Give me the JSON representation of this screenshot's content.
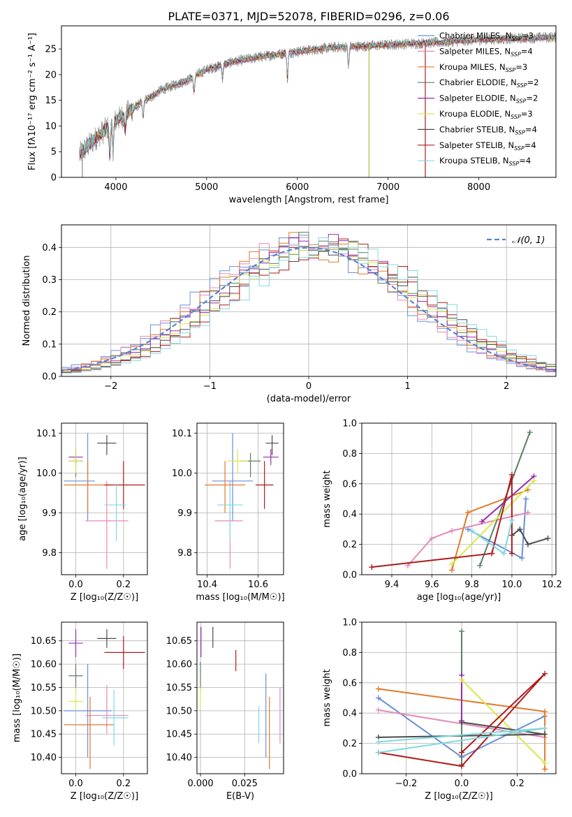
{
  "colors": {
    "Chabrier MILES": "#6a8fd8",
    "Salpeter MILES": "#e68ab8",
    "Kroupa MILES": "#e07a2a",
    "Chabrier ELODIE": "#5a7f66",
    "Salpeter ELODIE": "#9a2ab0",
    "Kroupa ELODIE": "#d8e84e",
    "Chabrier STELIB": "#4a4a4a",
    "Salpeter STELIB": "#b01a1a",
    "Kroupa STELIB": "#80d8e0"
  },
  "chart_data": [
    {
      "id": "spectrum",
      "type": "line",
      "title": "PLATE=0371, MJD=52078, FIBERID=0296, z=0.06",
      "xlabel": "wavelength [Angstrom, rest frame]",
      "ylabel": "Flux [fλ10⁻¹⁷ erg cm⁻² s⁻¹ A⁻¹]",
      "xlim": [
        3400,
        8850
      ],
      "ylim": [
        0,
        29.5
      ],
      "xticks": [
        "4000",
        "5000",
        "6000",
        "7000",
        "8000"
      ],
      "yticks": [
        "0",
        "5",
        "10",
        "15",
        "20",
        "25"
      ],
      "legend_loc": "upper right",
      "legend": [
        {
          "model": "Chabrier MILES",
          "label": "Chabrier MILES, N",
          "sub": "SSP",
          "n": "=3"
        },
        {
          "model": "Salpeter MILES",
          "label": "Salpeter MILES, N",
          "sub": "SSP",
          "n": "=4"
        },
        {
          "model": "Kroupa MILES",
          "label": "Kroupa MILES, N",
          "sub": "SSP",
          "n": "=3"
        },
        {
          "model": "Chabrier ELODIE",
          "label": "Chabrier ELODIE, N",
          "sub": "SSP",
          "n": "=2"
        },
        {
          "model": "Salpeter ELODIE",
          "label": "Salpeter ELODIE, N",
          "sub": "SSP",
          "n": "=2"
        },
        {
          "model": "Kroupa ELODIE",
          "label": "Kroupa ELODIE, N",
          "sub": "SSP",
          "n": "=3"
        },
        {
          "model": "Chabrier STELIB",
          "label": "Chabrier STELIB, N",
          "sub": "SSP",
          "n": "=4"
        },
        {
          "model": "Salpeter STELIB",
          "label": "Salpeter STELIB, N",
          "sub": "SSP",
          "n": "=4"
        },
        {
          "model": "Kroupa STELIB",
          "label": "Kroupa STELIB, N",
          "sub": "SSP",
          "n": "=4"
        }
      ],
      "continuum": [
        [
          3600,
          4.5
        ],
        [
          3800,
          8
        ],
        [
          4000,
          11
        ],
        [
          4200,
          13.5
        ],
        [
          4500,
          17
        ],
        [
          4800,
          19
        ],
        [
          5000,
          21
        ],
        [
          5300,
          22.5
        ],
        [
          5600,
          23.5
        ],
        [
          6000,
          24.5
        ],
        [
          6400,
          25.3
        ],
        [
          6800,
          25.6
        ],
        [
          7200,
          26
        ],
        [
          7600,
          26.3
        ],
        [
          8000,
          26.8
        ],
        [
          8400,
          27
        ],
        [
          8800,
          27.3
        ]
      ],
      "data_range": [
        3600,
        8850
      ],
      "data_color": "#8a8a8a",
      "dips": [
        [
          3933,
          6
        ],
        [
          3968,
          5
        ],
        [
          4102,
          3
        ],
        [
          4300,
          3
        ],
        [
          4861,
          3
        ],
        [
          5175,
          2.5
        ],
        [
          5890,
          5
        ],
        [
          6563,
          4
        ]
      ],
      "spikes": [
        [
          6790,
          0
        ],
        [
          7410,
          0
        ],
        [
          3630,
          0
        ]
      ]
    },
    {
      "id": "residuals",
      "type": "histogram",
      "xlabel": "(data-model)/error",
      "ylabel": "Normed distribution",
      "xlim": [
        -2.5,
        2.5
      ],
      "ylim": [
        0,
        0.47
      ],
      "xticks": [
        "−2",
        "−1",
        "0",
        "1",
        "2"
      ],
      "yticks": [
        "0.0",
        "0.1",
        "0.2",
        "0.3",
        "0.4"
      ],
      "bin_width": 0.1,
      "gaussian_label": "𝒩(0, 1)",
      "gaussian_color": "#5a82d6"
    },
    {
      "id": "age_vs_Z",
      "type": "errorbar",
      "xlabel": "Z [log₁₀(Z/Z☉)]",
      "ylabel": "age  [log₁₀(age/yr)]",
      "xlim": [
        -0.06,
        0.3
      ],
      "ylim": [
        9.745,
        10.125
      ],
      "xticks": [
        "0.0",
        "0.2"
      ],
      "yticks": [
        "9.8",
        "9.9",
        "10.0",
        "10.1"
      ],
      "points": [
        {
          "model": "Chabrier MILES",
          "x": 0.05,
          "xerr": [
            0.1,
            0.03
          ],
          "y": 9.98,
          "yerr": [
            0.1,
            0.12
          ]
        },
        {
          "model": "Salpeter MILES",
          "x": 0.13,
          "xerr": [
            0.09,
            0.09
          ],
          "y": 9.88,
          "yerr": [
            0.12,
            0.1
          ]
        },
        {
          "model": "Kroupa MILES",
          "x": 0.05,
          "xerr": [
            0.1,
            0.1
          ],
          "y": 9.97,
          "yerr": [
            0.07,
            0.06
          ]
        },
        {
          "model": "Chabrier ELODIE",
          "x": 0.0,
          "xerr": [
            0.03,
            0.03
          ],
          "y": 10.03,
          "yerr": [
            0.04,
            0.02
          ]
        },
        {
          "model": "Salpeter ELODIE",
          "x": 0.0,
          "xerr": [
            0.03,
            0.03
          ],
          "y": 10.04,
          "yerr": [
            0.02,
            0.02
          ]
        },
        {
          "model": "Kroupa ELODIE",
          "x": 0.0,
          "xerr": [
            0.03,
            0.03
          ],
          "y": 10.03,
          "yerr": [
            0.03,
            0.03
          ]
        },
        {
          "model": "Chabrier STELIB",
          "x": 0.13,
          "xerr": [
            0.04,
            0.04
          ],
          "y": 10.075,
          "yerr": [
            0.03,
            0.02
          ]
        },
        {
          "model": "Salpeter STELIB",
          "x": 0.2,
          "xerr": [
            0.08,
            0.09
          ],
          "y": 9.97,
          "yerr": [
            0.06,
            0.06
          ]
        },
        {
          "model": "Kroupa STELIB",
          "x": 0.17,
          "xerr": [
            0.05,
            0.04
          ],
          "y": 9.92,
          "yerr": [
            0.09,
            0.05
          ]
        }
      ]
    },
    {
      "id": "age_vs_mass",
      "type": "errorbar",
      "xlabel": "mass [log₁₀(M/M☉)]",
      "ylabel": "",
      "xlim": [
        10.36,
        10.7
      ],
      "ylim": [
        9.745,
        10.125
      ],
      "xticks": [
        "10.4",
        "10.6"
      ],
      "yticks": [
        "9.8",
        "9.9",
        "10.0",
        "10.1"
      ],
      "points": [
        {
          "model": "Chabrier MILES",
          "x": 10.5,
          "xerr": [
            0.08,
            0.08
          ],
          "y": 9.98,
          "yerr": [
            0.1,
            0.12
          ]
        },
        {
          "model": "Salpeter MILES",
          "x": 10.49,
          "xerr": [
            0.06,
            0.05
          ],
          "y": 9.88,
          "yerr": [
            0.12,
            0.1
          ]
        },
        {
          "model": "Kroupa MILES",
          "x": 10.47,
          "xerr": [
            0.08,
            0.08
          ],
          "y": 9.97,
          "yerr": [
            0.07,
            0.06
          ]
        },
        {
          "model": "Chabrier ELODIE",
          "x": 10.57,
          "xerr": [
            0.04,
            0.04
          ],
          "y": 10.03,
          "yerr": [
            0.04,
            0.02
          ]
        },
        {
          "model": "Salpeter ELODIE",
          "x": 10.65,
          "xerr": [
            0.03,
            0.03
          ],
          "y": 10.04,
          "yerr": [
            0.02,
            0.02
          ]
        },
        {
          "model": "Kroupa ELODIE",
          "x": 10.52,
          "xerr": [
            0.04,
            0.04
          ],
          "y": 10.03,
          "yerr": [
            0.03,
            0.03
          ]
        },
        {
          "model": "Chabrier STELIB",
          "x": 10.655,
          "xerr": [
            0.025,
            0.025
          ],
          "y": 10.075,
          "yerr": [
            0.03,
            0.02
          ]
        },
        {
          "model": "Salpeter STELIB",
          "x": 10.625,
          "xerr": [
            0.035,
            0.035
          ],
          "y": 9.97,
          "yerr": [
            0.06,
            0.06
          ]
        },
        {
          "model": "Kroupa STELIB",
          "x": 10.49,
          "xerr": [
            0.05,
            0.05
          ],
          "y": 9.92,
          "yerr": [
            0.09,
            0.05
          ]
        }
      ]
    },
    {
      "id": "weight_vs_age",
      "type": "line",
      "xlabel": "age  [log₁₀(age/yr)]",
      "ylabel": "mass weight",
      "xlim": [
        9.25,
        10.22
      ],
      "ylim": [
        0.0,
        1.0
      ],
      "xticks": [
        "9.4",
        "9.6",
        "9.8",
        "10.0",
        "10.2"
      ],
      "yticks": [
        "0.0",
        "0.2",
        "0.4",
        "0.6",
        "0.8",
        "1.0"
      ],
      "series": [
        {
          "model": "Chabrier MILES",
          "x": [
            9.78,
            10.05,
            10.07
          ],
          "y": [
            0.3,
            0.11,
            0.5
          ]
        },
        {
          "model": "Salpeter MILES",
          "x": [
            9.48,
            9.6,
            9.7,
            10.08
          ],
          "y": [
            0.06,
            0.24,
            0.29,
            0.41
          ]
        },
        {
          "model": "Kroupa MILES",
          "x": [
            9.7,
            9.78,
            10.08
          ],
          "y": [
            0.03,
            0.41,
            0.56
          ]
        },
        {
          "model": "Chabrier ELODIE",
          "x": [
            9.84,
            10.09
          ],
          "y": [
            0.06,
            0.94
          ]
        },
        {
          "model": "Salpeter ELODIE",
          "x": [
            9.85,
            10.11
          ],
          "y": [
            0.35,
            0.65
          ]
        },
        {
          "model": "Kroupa ELODIE",
          "x": [
            9.7,
            10.11
          ],
          "y": [
            0.07,
            0.62
          ]
        },
        {
          "model": "Chabrier STELIB",
          "x": [
            10.0,
            10.04,
            10.08,
            10.18
          ],
          "y": [
            0.26,
            0.3,
            0.2,
            0.24
          ]
        },
        {
          "model": "Salpeter STELIB",
          "x": [
            9.3,
            9.9,
            10.0,
            10.0
          ],
          "y": [
            0.05,
            0.14,
            0.66,
            0.14
          ]
        },
        {
          "model": "Kroupa STELIB",
          "x": [
            9.8,
            9.96,
            10.0
          ],
          "y": [
            0.29,
            0.14,
            0.36
          ]
        }
      ]
    },
    {
      "id": "mass_vs_Z",
      "type": "errorbar",
      "xlabel": "Z [log₁₀(Z/Z☉)]",
      "ylabel": "mass [log₁₀(M/M☉)]",
      "xlim": [
        -0.06,
        0.3
      ],
      "ylim": [
        10.365,
        10.69
      ],
      "xticks": [
        "0.0",
        "0.2"
      ],
      "yticks": [
        "10.40",
        "10.45",
        "10.50",
        "10.55",
        "10.60",
        "10.65"
      ],
      "points": [
        {
          "model": "Chabrier MILES",
          "x": 0.05,
          "xerr": [
            0.1,
            0.1
          ],
          "y": 10.5,
          "yerr": [
            0.1,
            0.1
          ]
        },
        {
          "model": "Salpeter MILES",
          "x": 0.13,
          "xerr": [
            0.09,
            0.09
          ],
          "y": 10.49,
          "yerr": [
            0.04,
            0.065
          ]
        },
        {
          "model": "Kroupa MILES",
          "x": 0.06,
          "xerr": [
            0.11,
            0.1
          ],
          "y": 10.47,
          "yerr": [
            0.095,
            0.06
          ]
        },
        {
          "model": "Chabrier ELODIE",
          "x": 0.0,
          "xerr": [
            0.03,
            0.03
          ],
          "y": 10.575,
          "yerr": [
            0.03,
            0.025
          ]
        },
        {
          "model": "Salpeter ELODIE",
          "x": 0.0,
          "xerr": [
            0.03,
            0.03
          ],
          "y": 10.645,
          "yerr": [
            0.03,
            0.03
          ]
        },
        {
          "model": "Kroupa ELODIE",
          "x": 0.0,
          "xerr": [
            0.03,
            0.03
          ],
          "y": 10.52,
          "yerr": [
            0.02,
            0.03
          ]
        },
        {
          "model": "Chabrier STELIB",
          "x": 0.13,
          "xerr": [
            0.04,
            0.04
          ],
          "y": 10.655,
          "yerr": [
            0.02,
            0.02
          ]
        },
        {
          "model": "Salpeter STELIB",
          "x": 0.2,
          "xerr": [
            0.08,
            0.09
          ],
          "y": 10.625,
          "yerr": [
            0.035,
            0.035
          ]
        },
        {
          "model": "Kroupa STELIB",
          "x": 0.16,
          "xerr": [
            0.05,
            0.06
          ],
          "y": 10.485,
          "yerr": [
            0.06,
            0.06
          ]
        }
      ]
    },
    {
      "id": "mass_vs_ebv",
      "type": "errorbar",
      "xlabel": "E(B-V)",
      "ylabel": "",
      "xlim": [
        -0.002,
        0.047
      ],
      "ylim": [
        10.365,
        10.69
      ],
      "xticks": [
        "0.000",
        "0.025"
      ],
      "yticks": [
        "10.40",
        "10.45",
        "10.50",
        "10.55",
        "10.60",
        "10.65"
      ],
      "points": [
        {
          "model": "Chabrier MILES",
          "x": 0.037,
          "xerr": [
            0,
            0
          ],
          "y": 10.5,
          "yerr": [
            0.1,
            0.08
          ]
        },
        {
          "model": "Salpeter MILES",
          "x": 0.045,
          "xerr": [
            0,
            0
          ],
          "y": 10.49,
          "yerr": [
            0.06,
            0.06
          ]
        },
        {
          "model": "Kroupa MILES",
          "x": 0.039,
          "xerr": [
            0,
            0
          ],
          "y": 10.47,
          "yerr": [
            0.095,
            0.06
          ]
        },
        {
          "model": "Chabrier ELODIE",
          "x": 0.0,
          "xerr": [
            0,
            0
          ],
          "y": 10.575,
          "yerr": [
            0.03,
            0.03
          ]
        },
        {
          "model": "Salpeter ELODIE",
          "x": 0.0003,
          "xerr": [
            0,
            0
          ],
          "y": 10.645,
          "yerr": [
            0.03,
            0.035
          ]
        },
        {
          "model": "Kroupa ELODIE",
          "x": 0.0,
          "xerr": [
            0,
            0
          ],
          "y": 10.52,
          "yerr": [
            0.02,
            0.03
          ]
        },
        {
          "model": "Chabrier STELIB",
          "x": 0.007,
          "xerr": [
            0,
            0
          ],
          "y": 10.655,
          "yerr": [
            0.02,
            0.025
          ]
        },
        {
          "model": "Salpeter STELIB",
          "x": 0.02,
          "xerr": [
            0,
            0
          ],
          "y": 10.61,
          "yerr": [
            0.025,
            0.02
          ]
        },
        {
          "model": "Kroupa STELIB",
          "x": 0.033,
          "xerr": [
            0,
            0
          ],
          "y": 10.47,
          "yerr": [
            0.04,
            0.04
          ]
        }
      ]
    },
    {
      "id": "weight_vs_Z",
      "type": "line",
      "xlabel": "Z [log₁₀(Z/Z☉)]",
      "ylabel": "mass weight",
      "xlim": [
        -0.36,
        0.34
      ],
      "ylim": [
        0.0,
        1.0
      ],
      "xticks": [
        "−0.2",
        "0.0",
        "0.2"
      ],
      "yticks": [
        "0.0",
        "0.2",
        "0.4",
        "0.6",
        "0.8",
        "1.0"
      ],
      "series": [
        {
          "model": "Chabrier MILES",
          "x": [
            -0.3,
            0.0,
            0.3
          ],
          "y": [
            0.5,
            0.11,
            0.38
          ]
        },
        {
          "model": "Salpeter MILES",
          "x": [
            -0.3,
            0.3
          ],
          "y": [
            0.42,
            0.24
          ]
        },
        {
          "model": "Kroupa MILES",
          "x": [
            -0.3,
            0.3,
            0.3
          ],
          "y": [
            0.56,
            0.41,
            0.03
          ]
        },
        {
          "model": "Chabrier ELODIE",
          "x": [
            0.0,
            0.0
          ],
          "y": [
            0.94,
            0.06
          ]
        },
        {
          "model": "Salpeter ELODIE",
          "x": [
            0.0,
            0.0
          ],
          "y": [
            0.65,
            0.35
          ]
        },
        {
          "model": "Kroupa ELODIE",
          "x": [
            0.0,
            0.3
          ],
          "y": [
            0.62,
            0.07
          ]
        },
        {
          "model": "Chabrier STELIB",
          "x": [
            -0.3,
            0.3,
            0.0
          ],
          "y": [
            0.24,
            0.26,
            0.34
          ]
        },
        {
          "model": "Salpeter STELIB",
          "x": [
            -0.3,
            0.0,
            0.3,
            0.0
          ],
          "y": [
            0.14,
            0.05,
            0.66,
            0.14
          ]
        },
        {
          "model": "Kroupa STELIB",
          "x": [
            -0.3,
            0.3,
            -0.3
          ],
          "y": [
            0.14,
            0.3,
            0.21
          ]
        }
      ]
    }
  ]
}
